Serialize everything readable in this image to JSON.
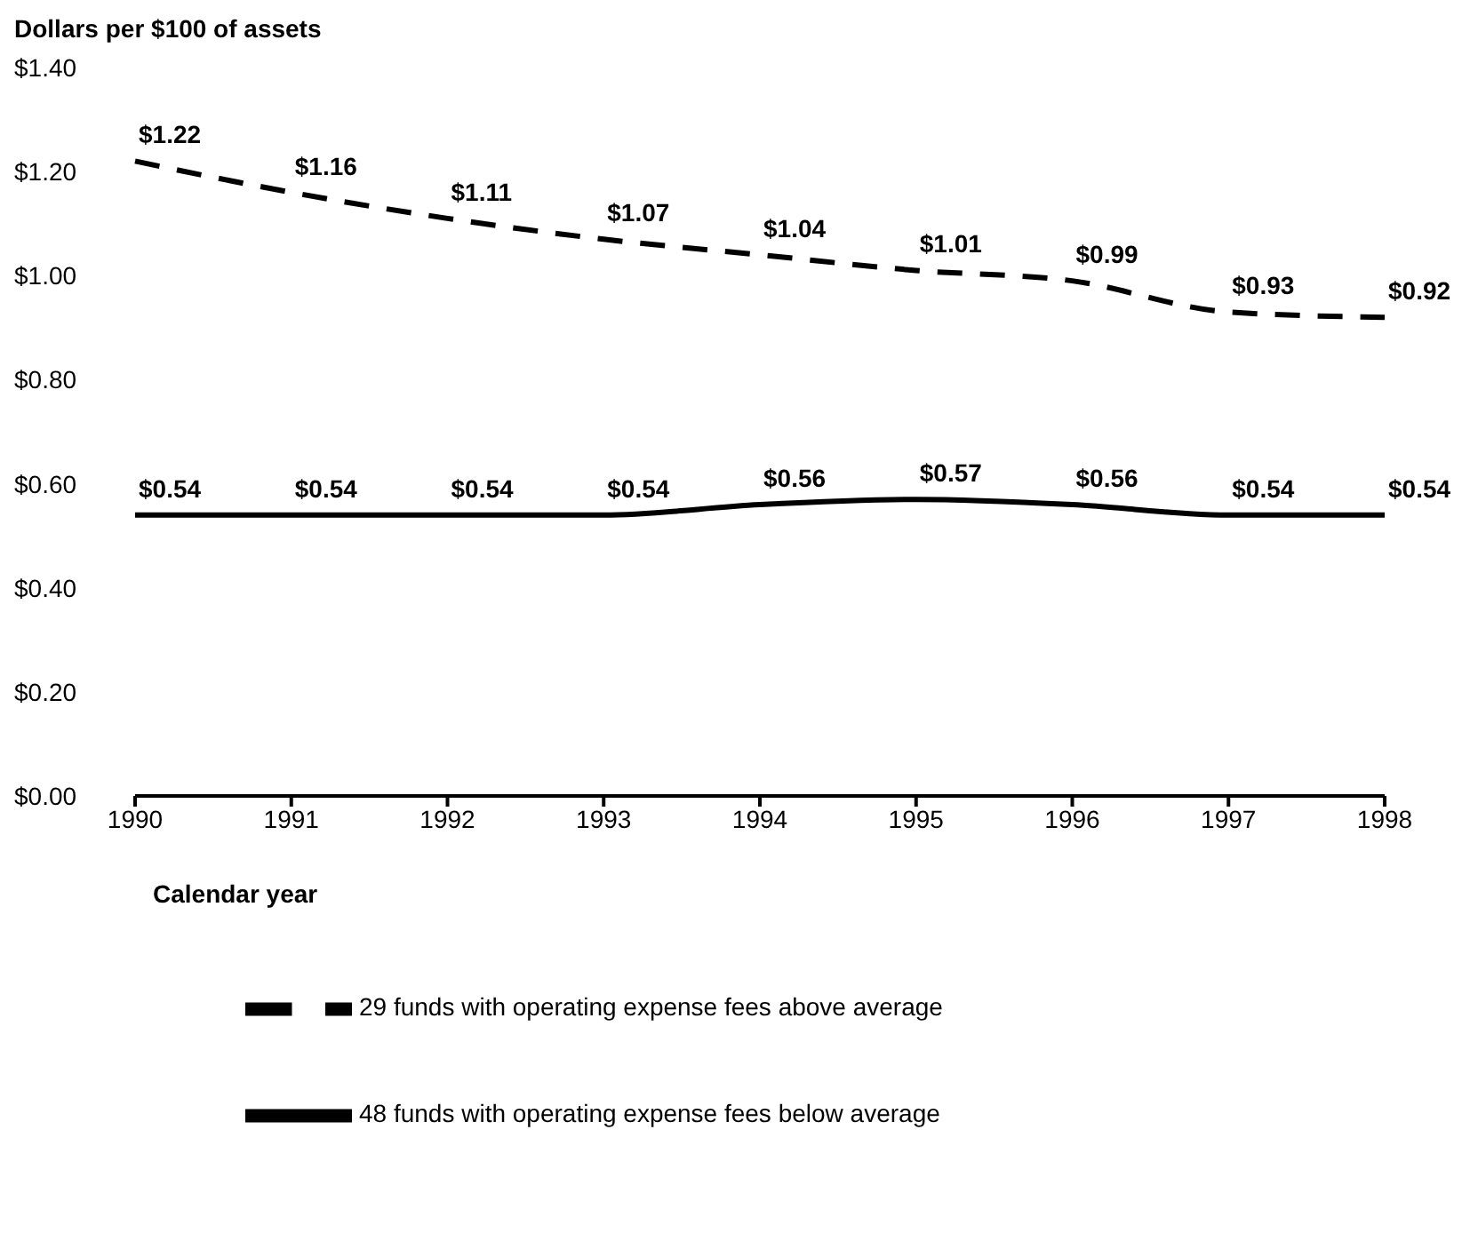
{
  "chart_data": {
    "type": "line",
    "title": "Dollars per $100 of assets",
    "xlabel": "Calendar year",
    "categories": [
      "1990",
      "1991",
      "1992",
      "1993",
      "1994",
      "1995",
      "1996",
      "1997",
      "1998"
    ],
    "series": [
      {
        "name": "48 funds with operating expense fees below average",
        "color": "#000000",
        "line_style": "solid",
        "values": [
          0.54,
          0.54,
          0.54,
          0.54,
          0.56,
          0.57,
          0.56,
          0.54,
          0.54
        ],
        "value_labels": [
          "$0.54",
          "$0.54",
          "$0.54",
          "$0.54",
          "$0.56",
          "$0.57",
          "$0.56",
          "$0.54",
          "$0.54"
        ]
      },
      {
        "name": "29 funds with operating expense fees above average",
        "color": "#000000",
        "line_style": "dashed",
        "values": [
          1.22,
          1.16,
          1.11,
          1.07,
          1.04,
          1.01,
          0.99,
          0.93,
          0.92
        ],
        "value_labels": [
          "$1.22",
          "$1.16",
          "$1.11",
          "$1.07",
          "$1.04",
          "$1.01",
          "$0.99",
          "$0.93",
          "$0.92"
        ]
      }
    ],
    "ylim": [
      0,
      1.4
    ],
    "yticks": [
      {
        "value": 0,
        "label": "$0.00"
      },
      {
        "value": 0.2,
        "label": "$0.20"
      },
      {
        "value": 0.4,
        "label": "$0.40"
      },
      {
        "value": 0.6,
        "label": "$0.60"
      },
      {
        "value": 0.8,
        "label": "$0.80"
      },
      {
        "value": 1,
        "label": "$1.00"
      },
      {
        "value": 1.2,
        "label": "$1.20"
      },
      {
        "value": 1.4,
        "label": "$1.40"
      }
    ],
    "marker": "none",
    "legend": "bottom",
    "grid": false
  }
}
